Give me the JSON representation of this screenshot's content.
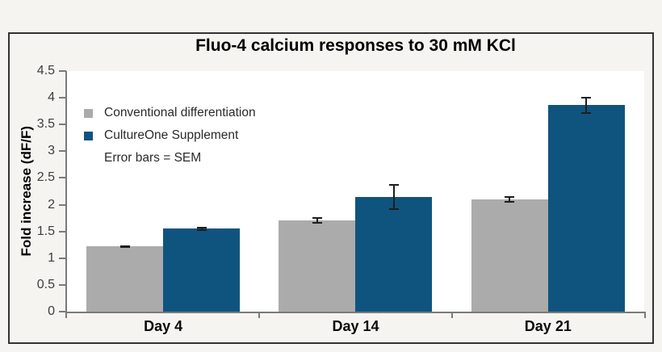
{
  "figure": {
    "title": "Fluo-4 calcium responses to 30 mM KCl"
  },
  "chart_data": {
    "type": "bar",
    "title": "Fluo-4 calcium responses to 30 mM KCl",
    "categories": [
      "Day 4",
      "Day 14",
      "Day 21"
    ],
    "series": [
      {
        "name": "Conventional differentiation",
        "color": "#ABABAB",
        "values": [
          1.22,
          1.71,
          2.1
        ],
        "errors_sem": [
          0.02,
          0.06,
          0.06
        ]
      },
      {
        "name": "CultureOne Supplement",
        "color": "#0F547E",
        "values": [
          1.55,
          2.15,
          3.86
        ],
        "errors_sem": [
          0.04,
          0.24,
          0.16
        ]
      }
    ],
    "xlabel": "",
    "ylabel": "Fold increase (dF/F)",
    "ylim": [
      0,
      4.5
    ],
    "ytick_step": 0.5,
    "grid": false,
    "legend_position": "top-left-inside",
    "error_note": "Error bars = SEM"
  },
  "colors": {
    "figure_bg": "#F5F4F1",
    "plot_bg": "#FFFFFF",
    "panel_border": "#323232",
    "axis_line": "#7A7A7A",
    "tick_label": "#3D3D3D",
    "error_bar": "#1E1E1E",
    "series_gray": "#ABABAB",
    "series_blue": "#0F547E"
  }
}
